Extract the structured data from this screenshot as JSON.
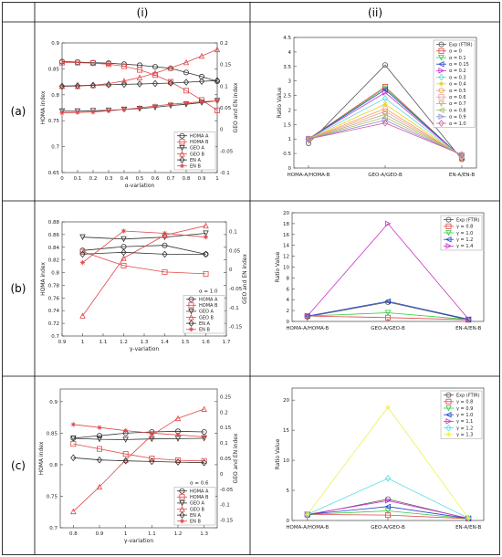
{
  "headers": [
    "(i)",
    "(ii)"
  ],
  "row_labels": [
    "(a)",
    "(b)",
    "(c)"
  ],
  "chart_data": [
    {
      "type": "line",
      "panel": "a-i",
      "xlabel": "α-variation",
      "ylabel": "HOMA index",
      "ylabel_right": "GEO and EN index",
      "x": [
        0,
        0.1,
        0.2,
        0.3,
        0.4,
        0.5,
        0.6,
        0.7,
        0.8,
        0.9,
        1
      ],
      "xticks": [
        "0",
        "0.1",
        "0.2",
        "0.3",
        "0.4",
        "0.5",
        "0.6",
        "0.7",
        "0.8",
        "0.9",
        "1"
      ],
      "xlim": [
        0,
        1
      ],
      "ylim": [
        0.65,
        0.9
      ],
      "yticks": [
        "0.65",
        "0.7",
        "0.75",
        "0.8",
        "0.85",
        "0.9"
      ],
      "y2lim": [
        -0.1,
        0.2
      ],
      "y2ticks": [
        "-0.1",
        "-0.05",
        "0",
        "0.05",
        "0.1",
        "0.15",
        "0.2"
      ],
      "series": [
        {
          "name": "HOMA A",
          "axis": "left",
          "color": "#333333",
          "marker": "circle",
          "values": [
            0.864,
            0.863,
            0.862,
            0.861,
            0.859,
            0.857,
            0.854,
            0.851,
            0.843,
            0.835,
            0.826
          ]
        },
        {
          "name": "HOMA B",
          "axis": "left",
          "color": "#e04848",
          "marker": "square",
          "values": [
            0.862,
            0.862,
            0.861,
            0.859,
            0.855,
            0.848,
            0.838,
            0.825,
            0.808,
            0.79,
            0.77
          ]
        },
        {
          "name": "GEO A",
          "axis": "right",
          "color": "#333333",
          "marker": "tri-down",
          "values": [
            0.042,
            0.042,
            0.043,
            0.044,
            0.046,
            0.048,
            0.051,
            0.055,
            0.058,
            0.062,
            0.066
          ]
        },
        {
          "name": "GEO B",
          "axis": "right",
          "color": "#e04848",
          "marker": "tri-up",
          "values": [
            0.1,
            0.1,
            0.102,
            0.106,
            0.112,
            0.12,
            0.13,
            0.142,
            0.155,
            0.17,
            0.185
          ]
        },
        {
          "name": "EN A",
          "axis": "right",
          "color": "#333333",
          "marker": "diamond",
          "values": [
            0.1,
            0.101,
            0.102,
            0.103,
            0.104,
            0.105,
            0.106,
            0.107,
            0.109,
            0.111,
            0.113
          ]
        },
        {
          "name": "EN B",
          "axis": "right",
          "color": "#e04848",
          "marker": "star",
          "values": [
            0.038,
            0.039,
            0.04,
            0.043,
            0.046,
            0.05,
            0.054,
            0.058,
            0.061,
            0.064,
            0.066
          ]
        }
      ],
      "legend": "bottom-right"
    },
    {
      "type": "line",
      "panel": "a-ii",
      "ylabel": "Ratio Value",
      "categories": [
        "HOMA-A/HOMA-B",
        "GEO-A/GEO-B",
        "EN-A/EN-B"
      ],
      "ylim": [
        0,
        4.5
      ],
      "yticks": [
        "0",
        "0.5",
        "1",
        "1.5",
        "2",
        "2.5",
        "3",
        "3.5",
        "4",
        "4.5"
      ],
      "series": [
        {
          "name": "Exp (FTIR)",
          "color": "#555555",
          "marker": "circle",
          "values": [
            0.85,
            3.55,
            0.3
          ]
        },
        {
          "name": "α = 0",
          "color": "#e04848",
          "marker": "square",
          "values": [
            1.0,
            2.8,
            0.35
          ]
        },
        {
          "name": "α = 0.1",
          "color": "#2ecc40",
          "marker": "tri-down",
          "values": [
            1.0,
            2.75,
            0.36
          ]
        },
        {
          "name": "α = 0.15",
          "color": "#2244cc",
          "marker": "tri-left",
          "values": [
            1.0,
            2.7,
            0.37
          ]
        },
        {
          "name": "α = 0.2",
          "color": "#cc33cc",
          "marker": "tri-right",
          "values": [
            1.0,
            2.6,
            0.38
          ]
        },
        {
          "name": "α = 0.3",
          "color": "#55dddd",
          "marker": "diamond",
          "values": [
            1.0,
            2.4,
            0.39
          ]
        },
        {
          "name": "α = 0.4",
          "color": "#e8d020",
          "marker": "star",
          "values": [
            1.0,
            2.2,
            0.4
          ]
        },
        {
          "name": "α = 0.5",
          "color": "#f0a050",
          "marker": "circle",
          "values": [
            1.0,
            2.05,
            0.41
          ]
        },
        {
          "name": "α = 0.6",
          "color": "#e8a0a0",
          "marker": "square",
          "values": [
            1.0,
            1.95,
            0.42
          ]
        },
        {
          "name": "α = 0.7",
          "color": "#c8a070",
          "marker": "tri-down",
          "values": [
            1.0,
            1.85,
            0.43
          ]
        },
        {
          "name": "α = 0.8",
          "color": "#a0c060",
          "marker": "tri-left",
          "values": [
            1.0,
            1.75,
            0.44
          ]
        },
        {
          "name": "α = 0.9",
          "color": "#9090e0",
          "marker": "tri-right",
          "values": [
            1.0,
            1.65,
            0.45
          ]
        },
        {
          "name": "α = 1.0",
          "color": "#d060a0",
          "marker": "diamond",
          "values": [
            1.0,
            1.55,
            0.46
          ]
        }
      ],
      "legend": "top-right"
    },
    {
      "type": "line",
      "panel": "b-i",
      "xlabel": "γ-variation",
      "ylabel": "HOMA index",
      "ylabel_right": "GEO and EN index",
      "annotation": "α = 1.0",
      "x": [
        1,
        1.2,
        1.4,
        1.6
      ],
      "xticks": [
        "0.9",
        "1",
        "1.1",
        "1.2",
        "1.3",
        "1.4",
        "1.5",
        "1.6",
        "1.7"
      ],
      "xlim": [
        0.9,
        1.7
      ],
      "ylim": [
        0.7,
        0.88
      ],
      "yticks": [
        "0.7",
        "0.72",
        "0.74",
        "0.76",
        "0.78",
        "0.8",
        "0.82",
        "0.84",
        "0.86",
        "0.88"
      ],
      "y2lim": [
        -0.175,
        0.125
      ],
      "y2ticks": [
        "-0.15",
        "-0.1",
        "-0.05",
        "0",
        "0.05",
        "0.1"
      ],
      "series": [
        {
          "name": "HOMA A",
          "axis": "left",
          "color": "#333333",
          "marker": "circle",
          "values": [
            0.835,
            0.841,
            0.843,
            0.829
          ]
        },
        {
          "name": "HOMA B",
          "axis": "left",
          "color": "#e04848",
          "marker": "square",
          "values": [
            0.833,
            0.811,
            0.801,
            0.798
          ]
        },
        {
          "name": "GEO A",
          "axis": "right",
          "color": "#333333",
          "marker": "tri-down",
          "values": [
            0.085,
            0.08,
            0.085,
            0.095
          ]
        },
        {
          "name": "GEO B",
          "axis": "right",
          "color": "#e04848",
          "marker": "tri-up",
          "values": [
            -0.122,
            0.03,
            0.09,
            0.115
          ]
        },
        {
          "name": "EN A",
          "axis": "right",
          "color": "#333333",
          "marker": "diamond",
          "values": [
            0.04,
            0.045,
            0.04,
            0.04
          ]
        },
        {
          "name": "EN B",
          "axis": "right",
          "color": "#e04848",
          "marker": "star",
          "values": [
            0.018,
            0.101,
            0.095,
            0.085
          ]
        }
      ],
      "legend": "bottom-right"
    },
    {
      "type": "line",
      "panel": "b-ii",
      "ylabel": "Ratio Value",
      "categories": [
        "HOMA-A/HOMA-B",
        "GEO-A/GEO-B",
        "EN-A/EN-B"
      ],
      "ylim": [
        0,
        20
      ],
      "yticks": [
        "0",
        "2",
        "4",
        "6",
        "8",
        "10",
        "12",
        "14",
        "16",
        "18",
        "20"
      ],
      "series": [
        {
          "name": "Exp (FTIR)",
          "color": "#555555",
          "marker": "circle",
          "values": [
            0.85,
            3.55,
            0.3
          ]
        },
        {
          "name": "γ = 0.8",
          "color": "#e04848",
          "marker": "square",
          "values": [
            1.0,
            0.7,
            0.3
          ]
        },
        {
          "name": "γ = 1.0",
          "color": "#2ecc40",
          "marker": "tri-down",
          "values": [
            1.0,
            1.6,
            0.35
          ]
        },
        {
          "name": "γ = 1.2",
          "color": "#2244cc",
          "marker": "tri-left",
          "values": [
            1.0,
            3.7,
            0.4
          ]
        },
        {
          "name": "γ = 1.4",
          "color": "#cc33cc",
          "marker": "tri-right",
          "values": [
            1.0,
            18.0,
            0.45
          ]
        }
      ],
      "legend": "top-right"
    },
    {
      "type": "line",
      "panel": "c-i",
      "xlabel": "γ-variation",
      "ylabel": "HOMA index",
      "ylabel_right": "GEO and EN index",
      "annotation": "α = 0.6",
      "x": [
        0.8,
        0.9,
        1.0,
        1.1,
        1.2,
        1.3
      ],
      "xticks": [
        "0.8",
        "0.9",
        "1",
        "1.1",
        "1.2",
        "1.3"
      ],
      "xlim": [
        0.75,
        1.35
      ],
      "ylim": [
        0.7,
        0.92
      ],
      "yticks": [
        "0.7",
        "0.75",
        "0.8",
        "0.85",
        "0.9"
      ],
      "y2lim": [
        -0.175,
        0.275
      ],
      "y2ticks": [
        "-0.15",
        "-0.1",
        "-0.05",
        "0",
        "0.05",
        "0.1",
        "0.15",
        "0.2",
        "0.25"
      ],
      "series": [
        {
          "name": "HOMA A",
          "axis": "left",
          "color": "#333333",
          "marker": "circle",
          "values": [
            0.842,
            0.846,
            0.85,
            0.852,
            0.853,
            0.852
          ]
        },
        {
          "name": "HOMA B",
          "axis": "left",
          "color": "#e04848",
          "marker": "square",
          "values": [
            0.833,
            0.825,
            0.817,
            0.81,
            0.807,
            0.806
          ]
        },
        {
          "name": "GEO A",
          "axis": "right",
          "color": "#333333",
          "marker": "tri-down",
          "values": [
            0.115,
            0.112,
            0.111,
            0.113,
            0.114,
            0.115
          ]
        },
        {
          "name": "GEO B",
          "axis": "right",
          "color": "#e04848",
          "marker": "tri-up",
          "values": [
            -0.122,
            -0.042,
            0.045,
            0.125,
            0.18,
            0.21
          ]
        },
        {
          "name": "EN A",
          "axis": "right",
          "color": "#333333",
          "marker": "diamond",
          "values": [
            0.052,
            0.045,
            0.042,
            0.04,
            0.038,
            0.036
          ]
        },
        {
          "name": "EN B",
          "axis": "right",
          "color": "#e04848",
          "marker": "star",
          "values": [
            0.16,
            0.15,
            0.14,
            0.132,
            0.126,
            0.12
          ]
        }
      ],
      "legend": "bottom-right"
    },
    {
      "type": "line",
      "panel": "c-ii",
      "ylabel": "Ratio Value",
      "categories": [
        "HOMA-A/HOMA-B",
        "GEO-A/GEO-B",
        "EN-A/EN-B"
      ],
      "ylim": [
        0,
        22
      ],
      "yticks": [
        "0",
        "5",
        "10",
        "15",
        "20"
      ],
      "series": [
        {
          "name": "Exp (FTIR)",
          "color": "#555555",
          "marker": "circle",
          "values": [
            0.85,
            3.55,
            0.3
          ]
        },
        {
          "name": "γ = 0.8",
          "color": "#e04848",
          "marker": "square",
          "values": [
            1.0,
            0.9,
            0.3
          ]
        },
        {
          "name": "γ = 0.9",
          "color": "#2ecc40",
          "marker": "tri-down",
          "values": [
            1.0,
            1.6,
            0.32
          ]
        },
        {
          "name": "γ = 1.0",
          "color": "#2244cc",
          "marker": "tri-left",
          "values": [
            1.0,
            2.3,
            0.34
          ]
        },
        {
          "name": "γ = 1.1",
          "color": "#cc33cc",
          "marker": "tri-right",
          "values": [
            1.0,
            3.3,
            0.36
          ]
        },
        {
          "name": "γ = 1.2",
          "color": "#55dddd",
          "marker": "diamond",
          "values": [
            1.0,
            7.0,
            0.38
          ]
        },
        {
          "name": "γ = 1.3",
          "color": "#f0f050",
          "marker": "star",
          "values": [
            1.0,
            18.8,
            0.4
          ]
        }
      ],
      "legend": "top-right"
    }
  ]
}
